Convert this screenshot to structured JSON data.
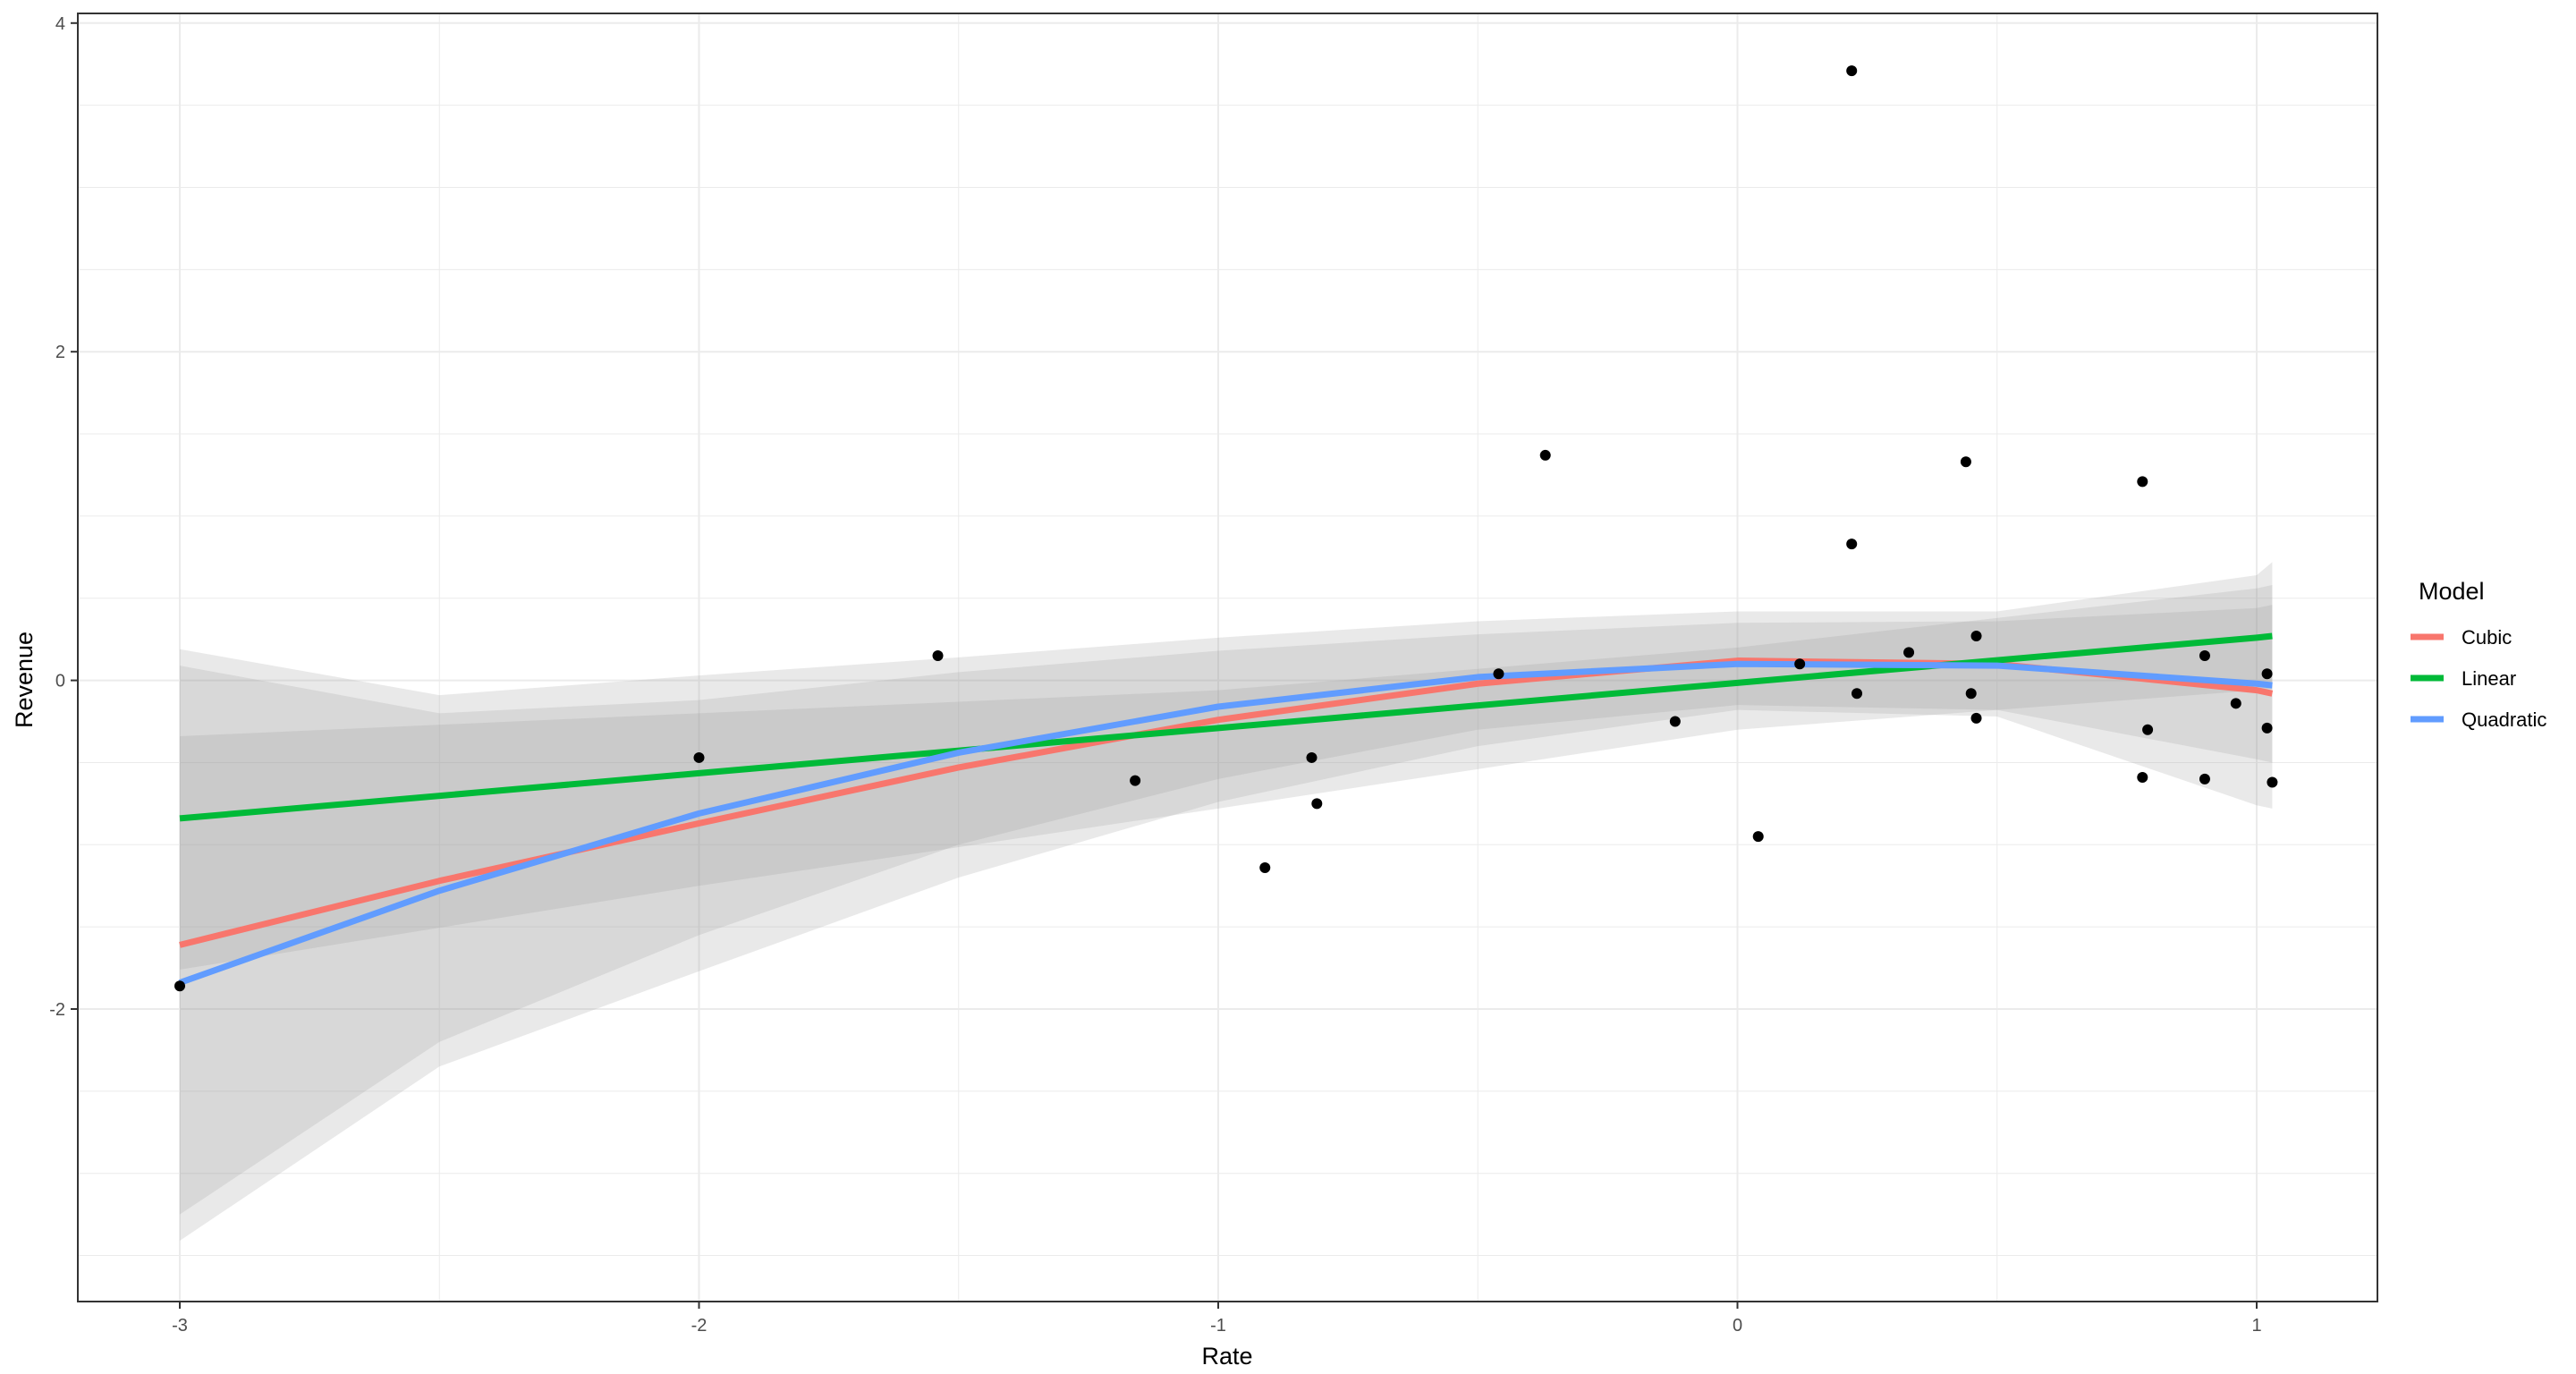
{
  "chart_data": {
    "type": "scatter",
    "title": "",
    "xlabel": "Rate",
    "ylabel": "Revenue",
    "xlim": [
      -3.2,
      1.25
    ],
    "ylim": [
      -3.77,
      4.05
    ],
    "x_ticks": [
      -3,
      -2,
      -1,
      0,
      1
    ],
    "y_ticks": [
      -2,
      0,
      2,
      4
    ],
    "grid": true,
    "legend": {
      "title": "Model",
      "placement": "right"
    },
    "points": [
      [
        -3.0,
        -1.86
      ],
      [
        -2.0,
        -0.47
      ],
      [
        -1.54,
        0.15
      ],
      [
        -1.16,
        -0.61
      ],
      [
        -0.91,
        -1.14
      ],
      [
        -0.82,
        -0.47
      ],
      [
        -0.81,
        -0.75
      ],
      [
        -0.46,
        0.04
      ],
      [
        -0.37,
        1.37
      ],
      [
        -0.12,
        -0.25
      ],
      [
        0.04,
        -0.95
      ],
      [
        0.12,
        0.1
      ],
      [
        0.22,
        3.71
      ],
      [
        0.22,
        0.83
      ],
      [
        0.23,
        -0.08
      ],
      [
        0.33,
        0.17
      ],
      [
        0.44,
        1.33
      ],
      [
        0.46,
        0.27
      ],
      [
        0.45,
        -0.08
      ],
      [
        0.46,
        -0.23
      ],
      [
        0.78,
        1.21
      ],
      [
        0.79,
        -0.3
      ],
      [
        0.78,
        -0.59
      ],
      [
        0.9,
        0.15
      ],
      [
        0.9,
        -0.6
      ],
      [
        0.96,
        -0.14
      ],
      [
        1.02,
        0.04
      ],
      [
        1.02,
        -0.29
      ],
      [
        1.03,
        -0.62
      ]
    ],
    "series": [
      {
        "name": "Cubic",
        "color": "#F8766D",
        "x": [
          -3,
          -2.5,
          -2,
          -1.5,
          -1,
          -0.5,
          0,
          0.5,
          1,
          1.03
        ],
        "y": [
          -1.61,
          -1.22,
          -0.87,
          -0.53,
          -0.24,
          -0.02,
          0.12,
          0.1,
          -0.06,
          -0.08
        ],
        "lower": [
          -3.41,
          -2.35,
          -1.77,
          -1.2,
          -0.74,
          -0.4,
          -0.18,
          -0.22,
          -0.76,
          -0.78
        ],
        "upper": [
          0.19,
          -0.09,
          0.03,
          0.14,
          0.26,
          0.36,
          0.42,
          0.42,
          0.64,
          0.72
        ]
      },
      {
        "name": "Linear",
        "color": "#00BA38",
        "x": [
          -3,
          -2,
          -1,
          0,
          1,
          1.03
        ],
        "y": [
          -0.84,
          -0.565,
          -0.29,
          -0.015,
          0.26,
          0.27
        ],
        "lower": [
          -1.76,
          -1.25,
          -0.78,
          -0.3,
          -0.06,
          -0.05
        ],
        "upper": [
          -0.34,
          -0.2,
          -0.06,
          0.2,
          0.56,
          0.58
        ]
      },
      {
        "name": "Quadratic",
        "color": "#619CFF",
        "x": [
          -3,
          -2.5,
          -2,
          -1.5,
          -1,
          -0.5,
          0,
          0.5,
          1,
          1.03
        ],
        "y": [
          -1.84,
          -1.28,
          -0.81,
          -0.44,
          -0.16,
          0.02,
          0.1,
          0.09,
          -0.02,
          -0.03
        ],
        "lower": [
          -3.25,
          -2.2,
          -1.55,
          -1.0,
          -0.6,
          -0.3,
          -0.15,
          -0.18,
          -0.48,
          -0.5
        ],
        "upper": [
          0.09,
          -0.2,
          -0.12,
          0.05,
          0.18,
          0.28,
          0.35,
          0.36,
          0.44,
          0.46
        ]
      }
    ]
  }
}
